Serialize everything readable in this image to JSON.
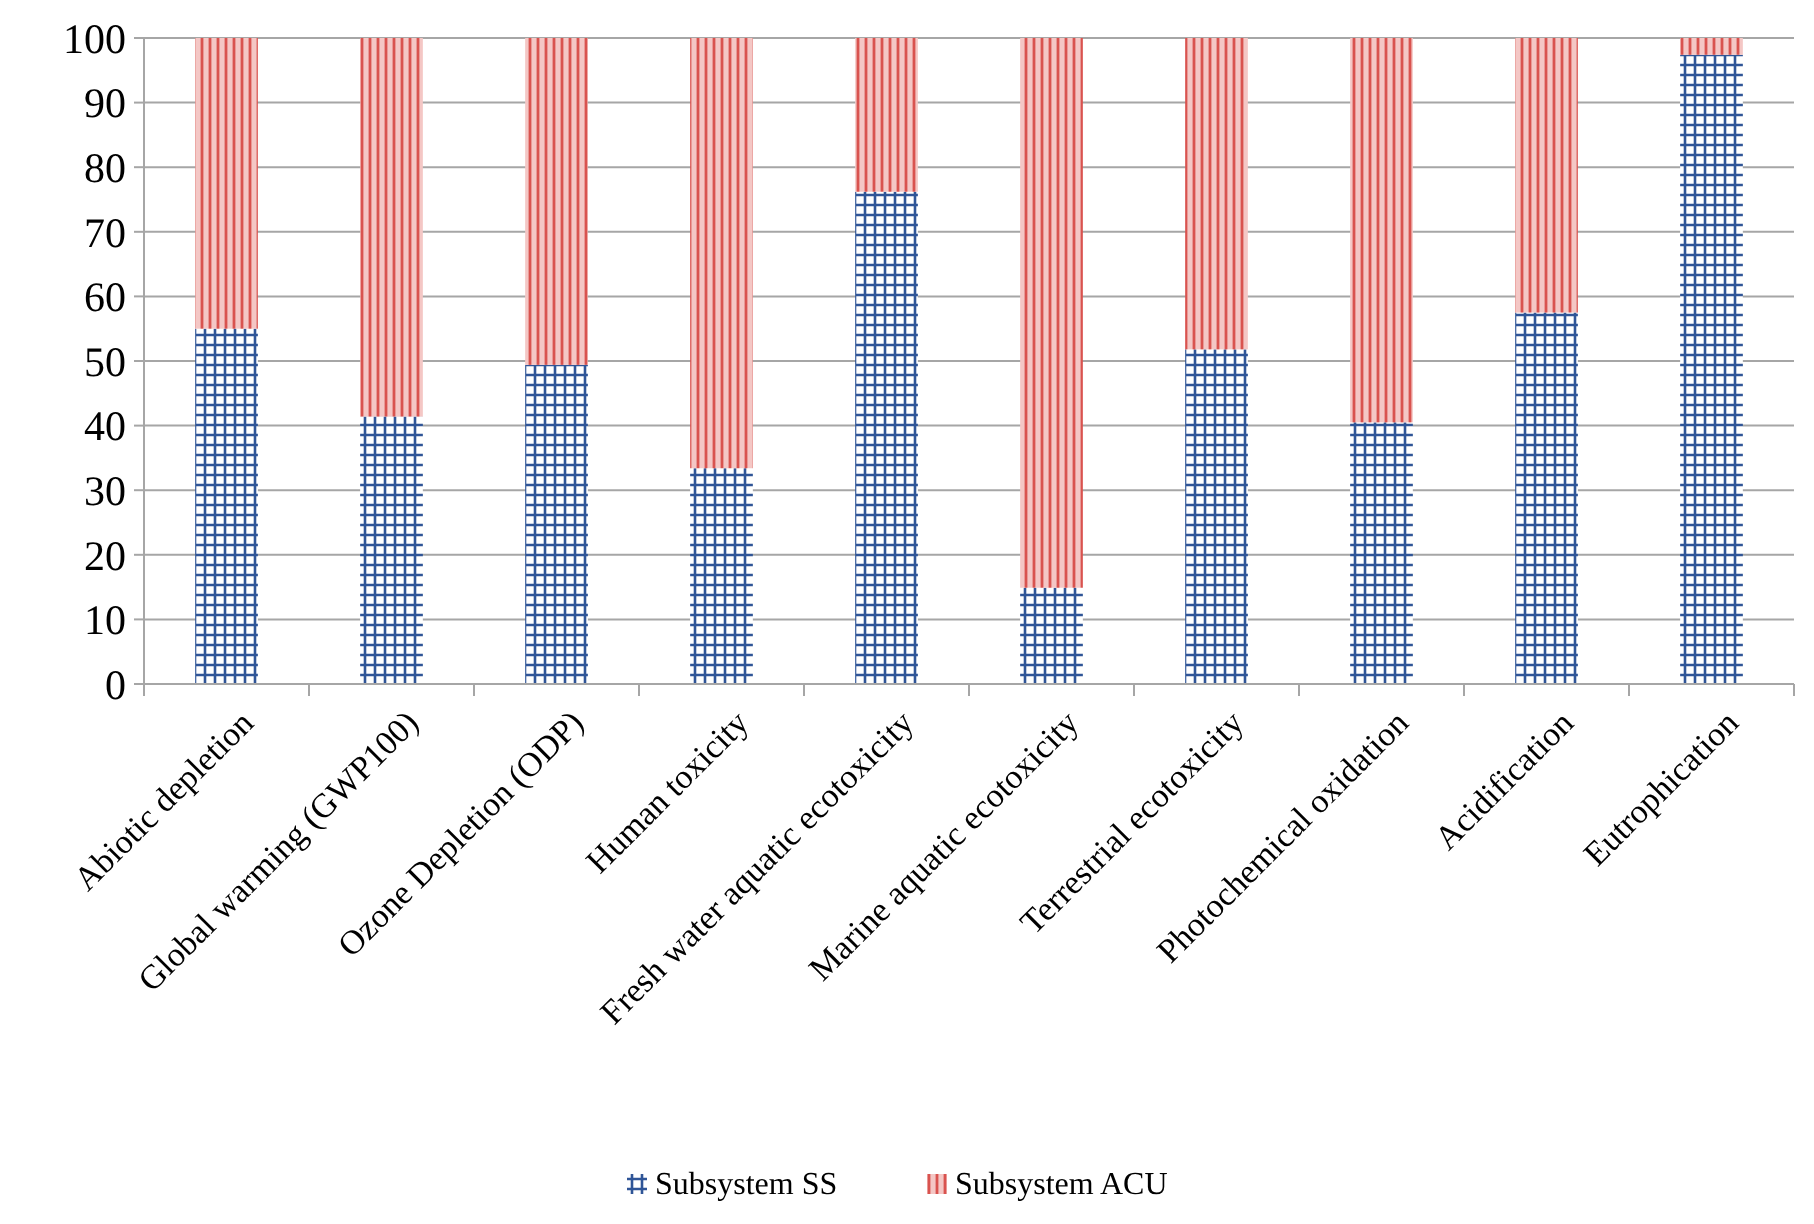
{
  "chart_data": {
    "type": "bar",
    "stacked": true,
    "categories": [
      "Abiotic depletion",
      "Global warming (GWP100)",
      "Ozone Depletion (ODP)",
      "Human toxicity",
      "Fresh water aquatic ecotoxicity",
      "Marine aquatic ecotoxicity",
      "Terrestrial ecotoxicity",
      "Photochemical oxidation",
      "Acidification",
      "Eutrophication"
    ],
    "series": [
      {
        "name": "Subsystem SS",
        "color": "#2f5597",
        "values": [
          55,
          41.4,
          49.4,
          33.4,
          76.2,
          14.9,
          51.8,
          40.5,
          57.5,
          97.4
        ]
      },
      {
        "name": "Subsystem ACU",
        "color": "#d9534f",
        "values": [
          45,
          58.6,
          50.6,
          66.6,
          23.8,
          85.1,
          48.2,
          59.5,
          42.5,
          2.6
        ]
      }
    ],
    "ylim": [
      0,
      100
    ],
    "yticks": [
      0,
      10,
      20,
      30,
      40,
      50,
      60,
      70,
      80,
      90,
      100
    ],
    "grid": "y",
    "legend": "bottom"
  }
}
